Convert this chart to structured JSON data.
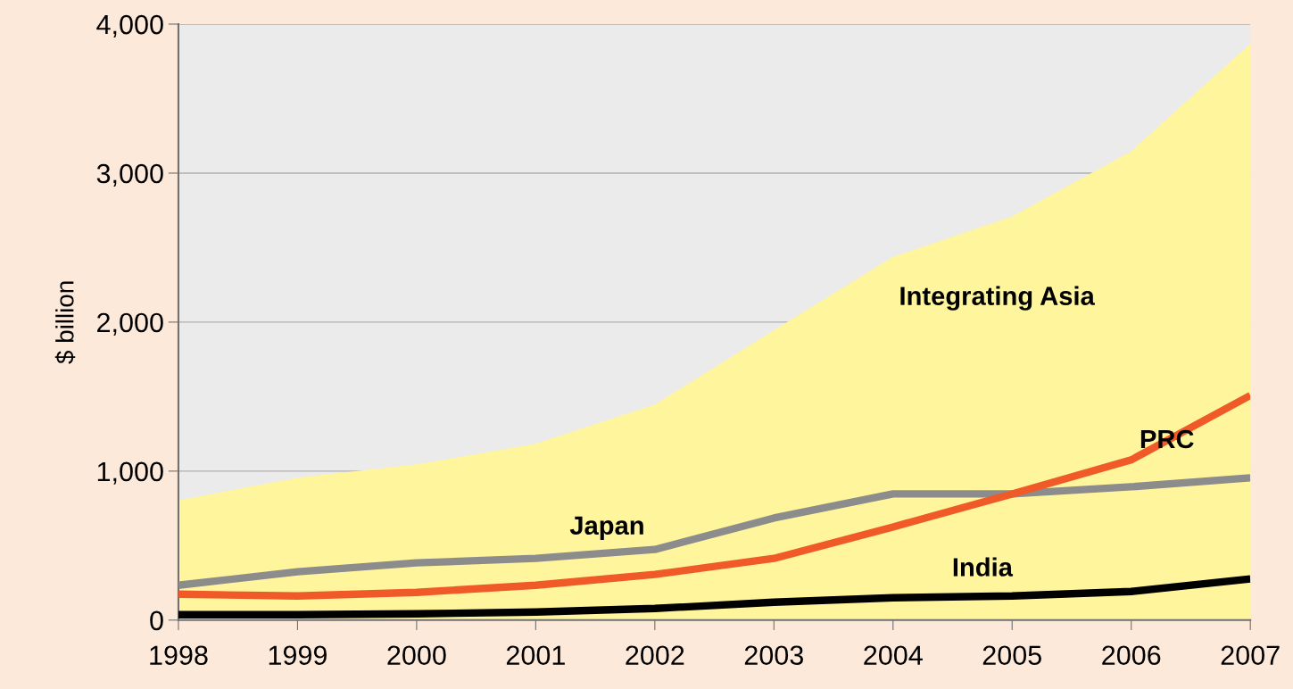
{
  "chart_data": {
    "type": "line",
    "ylabel": "$ billion",
    "x": [
      1998,
      1999,
      2000,
      2001,
      2002,
      2003,
      2004,
      2005,
      2006,
      2007
    ],
    "series": [
      {
        "name": "Integrating Asia",
        "type": "area",
        "color": "#fff59d",
        "values": [
          805,
          955,
          1045,
          1183,
          1447,
          1946,
          2438,
          2709,
          3147,
          3868
        ]
      },
      {
        "name": "Japan",
        "color": "#8c8c8c",
        "values": [
          234,
          324,
          384,
          414,
          474,
          685,
          847,
          847,
          895,
          955
        ]
      },
      {
        "name": "PRC",
        "color": "#f05a28",
        "values": [
          174,
          162,
          186,
          234,
          306,
          414,
          625,
          847,
          1075,
          1508
        ]
      },
      {
        "name": "India",
        "color": "#000000",
        "values": [
          36,
          36,
          42,
          54,
          78,
          120,
          150,
          162,
          192,
          276
        ]
      }
    ],
    "xlim": [
      1998,
      2007
    ],
    "xticks": [
      1998,
      1999,
      2000,
      2001,
      2002,
      2003,
      2004,
      2005,
      2006,
      2007
    ],
    "ylim": [
      0,
      4000
    ],
    "yticks": [
      0,
      {
        "value": 1000,
        "label": "1,000"
      },
      {
        "value": 2000,
        "label": "2,000"
      },
      {
        "value": 3000,
        "label": "3,000"
      },
      {
        "value": 4000,
        "label": "4,000"
      }
    ],
    "grid": "y",
    "legend": false
  }
}
